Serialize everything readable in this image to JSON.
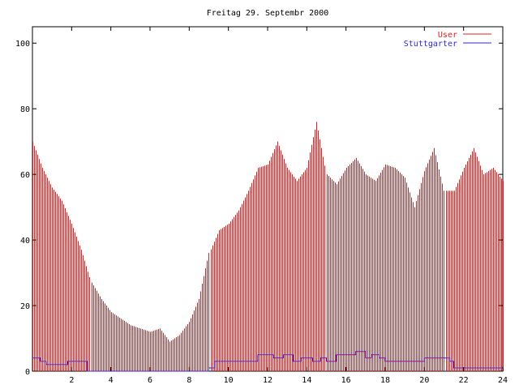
{
  "chart_data": {
    "type": "bar",
    "title": "Freitag 29. Septembr 2000",
    "xlabel": "",
    "ylabel": "",
    "xlim": [
      0,
      24
    ],
    "ylim": [
      0,
      105
    ],
    "xticks": [
      2,
      4,
      6,
      8,
      10,
      12,
      14,
      16,
      18,
      20,
      22,
      24
    ],
    "yticks": [
      0,
      20,
      40,
      60,
      80,
      100
    ],
    "legend_position": "top-right",
    "colors": {
      "user": "#e02020",
      "stuttgarter": "#2a2ad8"
    },
    "series": [
      {
        "name": "User",
        "style": "impulses",
        "x": [
          0.0,
          0.5,
          1.0,
          1.5,
          2.0,
          2.5,
          3.0,
          3.5,
          4.0,
          4.5,
          5.0,
          5.5,
          6.0,
          6.5,
          7.0,
          7.5,
          8.0,
          8.5,
          9.0,
          9.5,
          10.0,
          10.5,
          11.0,
          11.5,
          12.0,
          12.5,
          13.0,
          13.5,
          14.0,
          14.5,
          15.0,
          15.5,
          16.0,
          16.5,
          17.0,
          17.5,
          18.0,
          18.5,
          19.0,
          19.5,
          20.0,
          20.5,
          21.0,
          21.5,
          22.0,
          22.5,
          23.0,
          23.5,
          24.0
        ],
        "y": [
          70,
          62,
          56,
          52,
          45,
          37,
          27,
          22,
          18,
          16,
          14,
          13,
          12,
          13,
          9,
          11,
          15,
          22,
          36,
          43,
          45,
          49,
          55,
          62,
          63,
          70,
          62,
          58,
          62,
          76,
          60,
          57,
          62,
          65,
          60,
          58,
          63,
          62,
          59,
          50,
          61,
          68,
          55,
          55,
          62,
          68,
          60,
          62,
          58
        ]
      },
      {
        "name": "Stuttgarter",
        "style": "steps",
        "x": [
          0.0,
          0.4,
          0.7,
          1.5,
          1.8,
          2.8,
          7.8,
          9.0,
          9.3,
          11.2,
          11.5,
          12.3,
          12.8,
          13.3,
          13.7,
          14.3,
          14.7,
          15.0,
          15.5,
          16.2,
          16.5,
          17.0,
          17.3,
          17.7,
          18.0,
          19.0,
          20.0,
          21.3,
          21.5,
          24.0
        ],
        "y": [
          4,
          3,
          2,
          2,
          3,
          0,
          0,
          1,
          3,
          3,
          5,
          4,
          5,
          3,
          4,
          3,
          4,
          3,
          5,
          5,
          6,
          4,
          5,
          4,
          3,
          3,
          4,
          3,
          1,
          1
        ]
      }
    ]
  }
}
